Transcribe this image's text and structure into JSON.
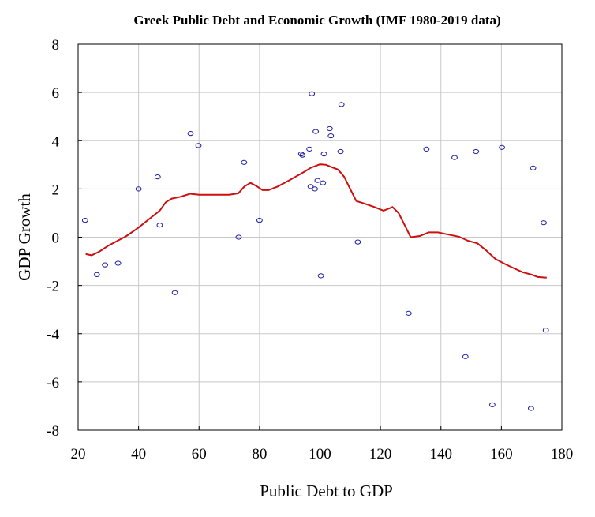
{
  "chart_data": {
    "type": "scatter",
    "title": "Greek Public Debt and Economic Growth (IMF 1980-2019 data)",
    "xlabel": "Public Debt to GDP",
    "ylabel": "GDP Growth",
    "xlim": [
      20,
      180
    ],
    "ylim": [
      -8,
      8
    ],
    "xticks": [
      20,
      40,
      60,
      80,
      100,
      120,
      140,
      160,
      180
    ],
    "yticks": [
      8,
      6,
      4,
      2,
      0,
      -2,
      -4,
      -6,
      -8
    ],
    "grid": true,
    "legend": "none",
    "point_color": "#1a1aa0",
    "fit_color": "#cc1010",
    "points": [
      {
        "x": 22.3,
        "y": 0.7
      },
      {
        "x": 26.2,
        "y": -1.55
      },
      {
        "x": 28.9,
        "y": -1.15
      },
      {
        "x": 33.2,
        "y": -1.08
      },
      {
        "x": 40.0,
        "y": 2.0
      },
      {
        "x": 46.3,
        "y": 2.5
      },
      {
        "x": 47.0,
        "y": 0.5
      },
      {
        "x": 52.0,
        "y": -2.3
      },
      {
        "x": 57.2,
        "y": 4.3
      },
      {
        "x": 59.8,
        "y": 3.8
      },
      {
        "x": 73.1,
        "y": 0.0
      },
      {
        "x": 74.9,
        "y": 3.1
      },
      {
        "x": 80.0,
        "y": 0.7
      },
      {
        "x": 93.8,
        "y": 3.45
      },
      {
        "x": 94.2,
        "y": 3.4
      },
      {
        "x": 96.5,
        "y": 3.65
      },
      {
        "x": 96.9,
        "y": 2.1
      },
      {
        "x": 97.3,
        "y": 5.95
      },
      {
        "x": 98.3,
        "y": 2.0
      },
      {
        "x": 98.6,
        "y": 4.38
      },
      {
        "x": 99.2,
        "y": 2.35
      },
      {
        "x": 100.3,
        "y": -1.6
      },
      {
        "x": 101.0,
        "y": 2.25
      },
      {
        "x": 101.3,
        "y": 3.45
      },
      {
        "x": 103.2,
        "y": 4.5
      },
      {
        "x": 103.6,
        "y": 4.2
      },
      {
        "x": 106.8,
        "y": 3.55
      },
      {
        "x": 107.1,
        "y": 5.5
      },
      {
        "x": 112.5,
        "y": -0.2
      },
      {
        "x": 129.3,
        "y": -3.15
      },
      {
        "x": 135.2,
        "y": 3.65
      },
      {
        "x": 144.5,
        "y": 3.3
      },
      {
        "x": 148.1,
        "y": -4.95
      },
      {
        "x": 151.6,
        "y": 3.55
      },
      {
        "x": 157.0,
        "y": -6.95
      },
      {
        "x": 160.2,
        "y": 3.72
      },
      {
        "x": 169.8,
        "y": -7.1
      },
      {
        "x": 170.5,
        "y": 2.87
      },
      {
        "x": 174.0,
        "y": 0.6
      },
      {
        "x": 174.7,
        "y": -3.85
      }
    ],
    "fit_line": [
      [
        22.5,
        -0.7
      ],
      [
        24.5,
        -0.75
      ],
      [
        27.0,
        -0.6
      ],
      [
        30.0,
        -0.35
      ],
      [
        33.0,
        -0.15
      ],
      [
        36.0,
        0.05
      ],
      [
        40.0,
        0.4
      ],
      [
        44.0,
        0.8
      ],
      [
        47.0,
        1.1
      ],
      [
        49.0,
        1.45
      ],
      [
        51.0,
        1.6
      ],
      [
        54.0,
        1.68
      ],
      [
        57.0,
        1.8
      ],
      [
        60.0,
        1.76
      ],
      [
        65.0,
        1.76
      ],
      [
        70.0,
        1.76
      ],
      [
        73.0,
        1.82
      ],
      [
        75.0,
        2.1
      ],
      [
        77.0,
        2.25
      ],
      [
        79.0,
        2.12
      ],
      [
        81.0,
        1.95
      ],
      [
        83.0,
        1.95
      ],
      [
        86.0,
        2.1
      ],
      [
        90.0,
        2.37
      ],
      [
        94.0,
        2.65
      ],
      [
        97.0,
        2.88
      ],
      [
        100.0,
        3.02
      ],
      [
        102.0,
        3.0
      ],
      [
        104.0,
        2.9
      ],
      [
        106.0,
        2.8
      ],
      [
        108.0,
        2.5
      ],
      [
        110.0,
        2.0
      ],
      [
        112.0,
        1.5
      ],
      [
        115.0,
        1.38
      ],
      [
        118.0,
        1.25
      ],
      [
        121.0,
        1.1
      ],
      [
        124.0,
        1.25
      ],
      [
        126.0,
        1.0
      ],
      [
        128.0,
        0.5
      ],
      [
        130.0,
        0.0
      ],
      [
        133.0,
        0.05
      ],
      [
        136.0,
        0.2
      ],
      [
        139.0,
        0.2
      ],
      [
        142.0,
        0.12
      ],
      [
        146.0,
        0.02
      ],
      [
        149.0,
        -0.15
      ],
      [
        152.0,
        -0.25
      ],
      [
        155.0,
        -0.55
      ],
      [
        158.0,
        -0.9
      ],
      [
        161.0,
        -1.1
      ],
      [
        164.0,
        -1.28
      ],
      [
        167.0,
        -1.45
      ],
      [
        170.0,
        -1.55
      ],
      [
        172.0,
        -1.65
      ],
      [
        175.0,
        -1.68
      ]
    ]
  }
}
